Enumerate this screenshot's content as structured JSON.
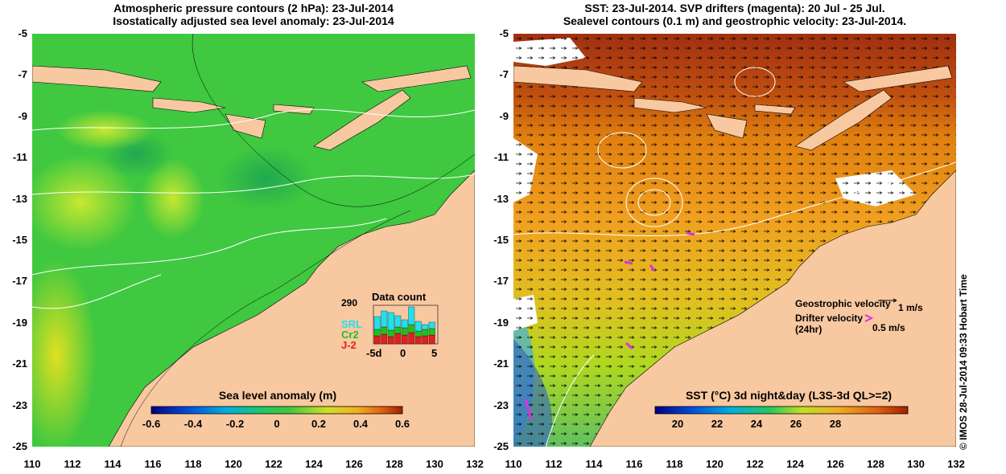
{
  "left": {
    "title_line1": "Atmospheric pressure contours (2 hPa): 23-Jul-2014",
    "title_line2": "Isostatically adjusted sea level anomaly: 23-Jul-2014",
    "colorbar_title": "Sea level anomaly (m)",
    "colorbar_ticks": [
      "-0.6",
      "-0.4",
      "-0.2",
      "0",
      "0.2",
      "0.4",
      "0.6"
    ],
    "inset": {
      "title": "Data count",
      "count": "290",
      "satellites": [
        {
          "name": "SRL",
          "color": "#22e0f0"
        },
        {
          "name": "Cr2",
          "color": "#20c020"
        },
        {
          "name": "J-2",
          "color": "#e02020"
        }
      ],
      "x_ticks": [
        "-5d",
        "0",
        "5"
      ]
    }
  },
  "right": {
    "title_line1": "SST: 23-Jul-2014. SVP drifters (magenta): 20 Jul - 25 Jul.",
    "title_line2": "Sealevel contours (0.1 m) and geostrophic velocity: 23-Jul-2014.",
    "colorbar_title": "SST (°C) 3d night&day (L3S-3d QL>=2)",
    "colorbar_ticks": [
      "20",
      "22",
      "24",
      "26",
      "28"
    ],
    "legend": {
      "geostrophic_label": "Geostrophic velocity",
      "geostrophic_value": "1 m/s",
      "drifter_label": "Drifter velocity",
      "drifter_sub": "(24hr)",
      "drifter_value": "0.5 m/s"
    }
  },
  "axes": {
    "y_ticks": [
      "-5",
      "-7",
      "-9",
      "-11",
      "-13",
      "-15",
      "-17",
      "-19",
      "-21",
      "-23",
      "-25"
    ],
    "x_ticks": [
      "110",
      "112",
      "114",
      "116",
      "118",
      "120",
      "122",
      "124",
      "126",
      "128",
      "130",
      "132"
    ]
  },
  "footer": {
    "credit": "© IMOS 28-Jul-2014 09:33 Hobart Time"
  },
  "colors": {
    "land": "#f8c8a0",
    "sla_base": "#3cc83c",
    "sst_base": "#f0a020",
    "drifter": "#e030e0"
  }
}
